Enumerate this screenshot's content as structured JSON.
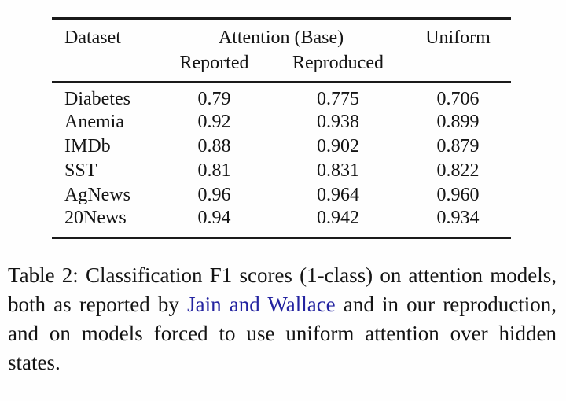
{
  "table": {
    "header": {
      "dataset": "Dataset",
      "group": "Attention (Base)",
      "reported": "Reported",
      "reproduced": "Reproduced",
      "uniform": "Uniform"
    },
    "rows": [
      {
        "dataset": "Diabetes",
        "reported": "0.79",
        "reproduced": "0.775",
        "uniform": "0.706"
      },
      {
        "dataset": "Anemia",
        "reported": "0.92",
        "reproduced": "0.938",
        "uniform": "0.899"
      },
      {
        "dataset": "IMDb",
        "reported": "0.88",
        "reproduced": "0.902",
        "uniform": "0.879"
      },
      {
        "dataset": "SST",
        "reported": "0.81",
        "reproduced": "0.831",
        "uniform": "0.822"
      },
      {
        "dataset": "AgNews",
        "reported": "0.96",
        "reproduced": "0.964",
        "uniform": "0.960"
      },
      {
        "dataset": "20News",
        "reported": "0.94",
        "reproduced": "0.942",
        "uniform": "0.934"
      }
    ]
  },
  "caption": {
    "part1": "Table 2: Classification F1 scores (1-class) on attention models, both as reported by ",
    "link": "Jain and Wallace",
    "part2": " and in our reproduction, and on models forced to use uniform attention over hidden states."
  },
  "colors": {
    "text": "#141414",
    "rule": "#1a1a1a",
    "link": "#2323a0",
    "background": "#fefefe"
  }
}
